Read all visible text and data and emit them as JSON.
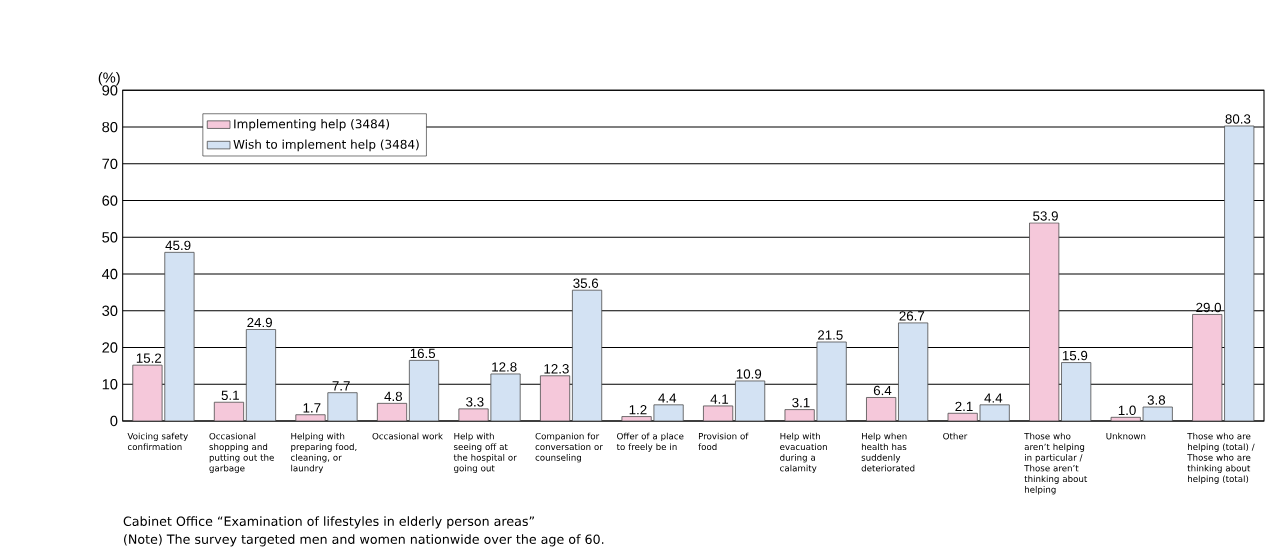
{
  "chart_data": {
    "type": "bar",
    "categories": [
      "Voicing safety confirmation",
      "Occasional shopping and putting out the garbage",
      "Helping with preparing food, cleaning, or laundry",
      "Occasional work",
      "Help with seeing off at the hospital or going out",
      "Companion for conversation or counseling",
      "Offer of a place to freely be in",
      "Provision of food",
      "Help with evacuation during a calamity",
      "Help when health has suddenly deteriorated",
      "Other",
      "Those who aren’t helping in particular / Those aren’t thinking about helping",
      "Unknown",
      "Those who are helping (total) / Those who are thinking about helping (total)"
    ],
    "series": [
      {
        "name": "Implementing help (3484)",
        "color": "#f5c8da",
        "values": [
          15.2,
          5.1,
          1.7,
          4.8,
          3.3,
          12.3,
          1.2,
          4.1,
          3.1,
          6.4,
          2.1,
          53.9,
          1.0,
          29.0
        ],
        "value_labels": [
          "15.2",
          "5.1",
          "1.7",
          "4.8",
          "3.3",
          "12.3",
          "1.2",
          "4.1",
          "3.1",
          "6.4",
          "2.1",
          "53.9",
          "1.0",
          "29.0"
        ]
      },
      {
        "name": "Wish to implement help (3484)",
        "color": "#d3e2f3",
        "values": [
          45.9,
          24.9,
          7.7,
          16.5,
          12.8,
          35.6,
          4.4,
          10.9,
          21.5,
          26.7,
          4.4,
          15.9,
          3.8,
          80.3
        ],
        "value_labels": [
          "45.9",
          "24.9",
          "7.7",
          "16.5",
          "12.8",
          "35.6",
          "4.4",
          "10.9",
          "21.5",
          "26.7",
          "4.4",
          "15.9",
          "3.8",
          "80.3"
        ]
      }
    ],
    "ylabel": "(%)",
    "ylim": [
      0,
      90
    ],
    "yticks": [
      0,
      10,
      20,
      30,
      40,
      50,
      60,
      70,
      80,
      90
    ],
    "grid": "y",
    "legend": "top left",
    "annotations": [
      "Cabinet Office “Examination of lifestyles in elderly person areas”",
      "(Note) The survey targeted men and women nationwide over the age of 60."
    ]
  }
}
